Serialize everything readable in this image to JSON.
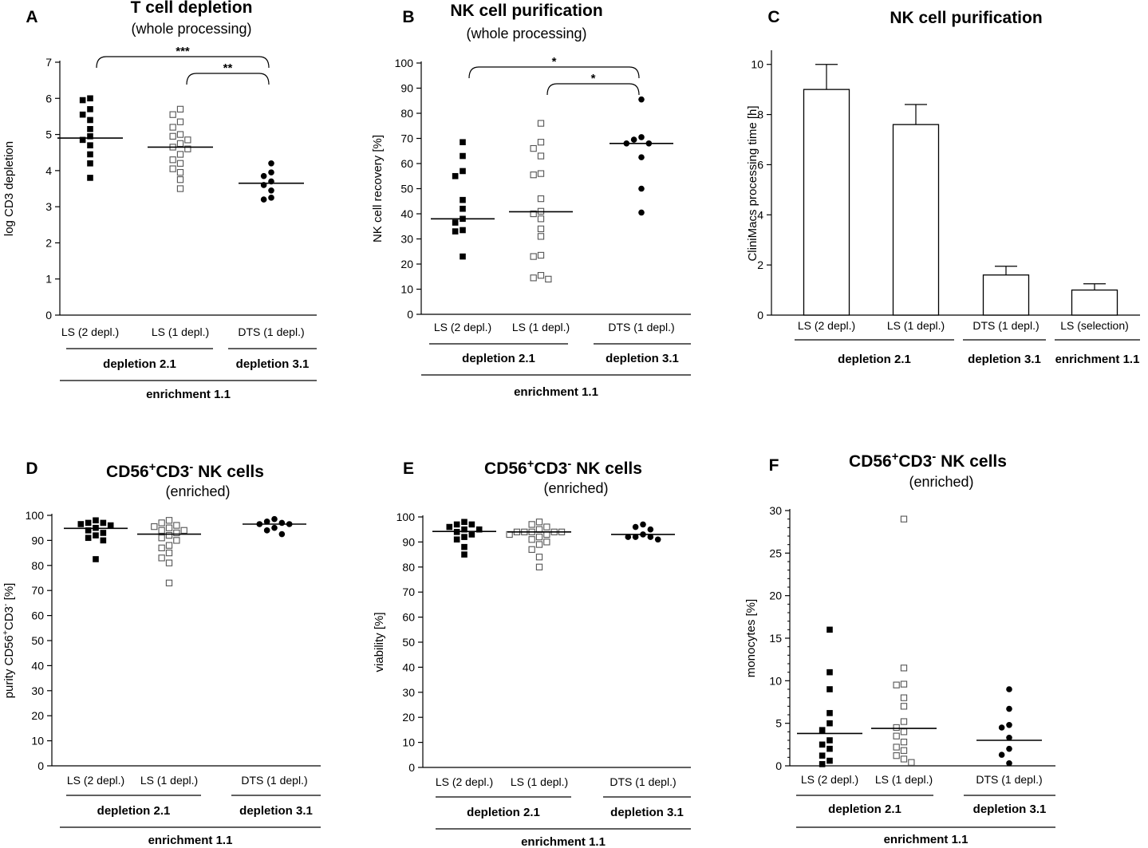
{
  "chart_data": [
    {
      "panel": "A",
      "type": "scatter",
      "title": "T cell depletion",
      "subtitle": "(whole processing)",
      "ylabel": "log CD3 depletion",
      "ylim": [
        0,
        7
      ],
      "yticks": [
        0,
        1,
        2,
        3,
        4,
        5,
        6,
        7
      ],
      "categories": [
        "LS (2 depl.)",
        "LS (1 depl.)",
        "DTS (1 depl.)"
      ],
      "groups": [
        {
          "label": "depletion 2.1",
          "span": [
            0,
            1
          ]
        },
        {
          "label": "depletion 3.1",
          "span": [
            2,
            2
          ]
        }
      ],
      "super_label": "enrichment 1.1",
      "series": [
        {
          "name": "LS (2 depl.)",
          "marker": "filled-square",
          "median": 4.9,
          "values": [
            6.0,
            5.95,
            5.7,
            5.55,
            5.4,
            5.15,
            4.95,
            4.85,
            4.7,
            4.45,
            4.2,
            3.8
          ]
        },
        {
          "name": "LS (1 depl.)",
          "marker": "open-square",
          "median": 4.65,
          "values": [
            5.7,
            5.55,
            5.35,
            5.2,
            5.0,
            4.95,
            4.85,
            4.75,
            4.65,
            4.6,
            4.45,
            4.3,
            4.2,
            4.05,
            3.95,
            3.75,
            3.5
          ]
        },
        {
          "name": "DTS (1 depl.)",
          "marker": "filled-circle",
          "median": 3.65,
          "values": [
            4.2,
            3.95,
            3.85,
            3.7,
            3.6,
            3.45,
            3.25,
            3.2
          ]
        }
      ],
      "significance": [
        {
          "from": 0,
          "to": 2,
          "label": "***"
        },
        {
          "from": 1,
          "to": 2,
          "label": "**"
        }
      ]
    },
    {
      "panel": "B",
      "type": "scatter",
      "title": "NK cell purification",
      "subtitle": "(whole processing)",
      "ylabel": "NK cell recovery  [%]",
      "ylim": [
        0,
        100
      ],
      "yticks": [
        0,
        10,
        20,
        30,
        40,
        50,
        60,
        70,
        80,
        90,
        100
      ],
      "categories": [
        "LS (2 depl.)",
        "LS (1 depl.)",
        "DTS (1 depl.)"
      ],
      "groups": [
        {
          "label": "depletion 2.1",
          "span": [
            0,
            1
          ]
        },
        {
          "label": "depletion 3.1",
          "span": [
            2,
            2
          ]
        }
      ],
      "super_label": "enrichment 1.1",
      "series": [
        {
          "name": "LS (2 depl.)",
          "marker": "filled-square",
          "median": 38,
          "values": [
            68.5,
            63,
            57,
            55,
            45.5,
            42,
            38,
            36.5,
            33.5,
            33,
            23
          ]
        },
        {
          "name": "LS (1 depl.)",
          "marker": "open-square",
          "median": 40.8,
          "values": [
            76,
            68.5,
            66,
            63,
            56,
            55.5,
            46,
            41,
            40,
            38,
            34,
            31,
            23.5,
            23,
            15.5,
            14.5,
            14
          ]
        },
        {
          "name": "DTS (1 depl.)",
          "marker": "filled-circle",
          "median": 68,
          "values": [
            85.5,
            70.5,
            69.5,
            68,
            68,
            62.5,
            50,
            40.5
          ]
        }
      ],
      "significance": [
        {
          "from": 0,
          "to": 2,
          "label": "*"
        },
        {
          "from": 1,
          "to": 2,
          "label": "*"
        }
      ]
    },
    {
      "panel": "C",
      "type": "bar",
      "title": "NK cell purification",
      "subtitle": "",
      "ylabel": "CliniMacs processing time [h]",
      "ylim": [
        0,
        10.5
      ],
      "yticks": [
        0,
        2,
        4,
        6,
        8,
        10
      ],
      "categories": [
        "LS (2 depl.)",
        "LS (1 depl.)",
        "DTS (1 depl.)",
        "LS (selection)"
      ],
      "groups": [
        {
          "label": "depletion 2.1",
          "span": [
            0,
            1
          ]
        },
        {
          "label": "depletion 3.1",
          "span": [
            2,
            2
          ]
        },
        {
          "label": "enrichment 1.1",
          "span": [
            3,
            3
          ]
        }
      ],
      "super_label": "",
      "values": [
        9.0,
        7.6,
        1.6,
        1.0
      ],
      "errors": [
        1.0,
        0.8,
        0.35,
        0.25
      ]
    },
    {
      "panel": "D",
      "type": "scatter",
      "title": "CD56",
      "title_sup1": "+",
      "title_mid": "CD3",
      "title_sup2": "-",
      "title_end": " NK cells",
      "subtitle": "(enriched)",
      "ylabel": "purity CD56",
      "ylabel_sup1": "+",
      "ylabel_mid": "CD3",
      "ylabel_sup2": "-",
      "ylabel_end": "   [%]",
      "ylim": [
        0,
        100
      ],
      "yticks": [
        0,
        10,
        20,
        30,
        40,
        50,
        60,
        70,
        80,
        90,
        100
      ],
      "categories": [
        "LS (2 depl.)",
        "LS (1 depl.)",
        "DTS (1 depl.)"
      ],
      "groups": [
        {
          "label": "depletion 2.1",
          "span": [
            0,
            1
          ]
        },
        {
          "label": "depletion 3.1",
          "span": [
            2,
            2
          ]
        }
      ],
      "super_label": "enrichment 1.1",
      "series": [
        {
          "name": "LS (2 depl.)",
          "marker": "filled-square",
          "median": 94.8,
          "values": [
            98,
            97,
            97,
            96.5,
            96,
            95,
            94,
            93,
            92,
            91,
            90,
            82.5
          ]
        },
        {
          "name": "LS (1 depl.)",
          "marker": "open-square",
          "median": 92.5,
          "values": [
            98,
            97,
            96,
            95.5,
            95,
            94,
            94,
            93,
            92,
            91,
            90,
            88,
            87,
            85,
            83,
            81,
            73
          ]
        },
        {
          "name": "DTS (1 depl.)",
          "marker": "filled-circle",
          "median": 96.5,
          "values": [
            98.5,
            97.5,
            97,
            96.5,
            96.5,
            95,
            94,
            92.5
          ]
        }
      ]
    },
    {
      "panel": "E",
      "type": "scatter",
      "title": "CD56",
      "title_sup1": "+",
      "title_mid": "CD3",
      "title_sup2": "-",
      "title_end": " NK cells",
      "subtitle": "(enriched)",
      "ylabel": "viability  [%]",
      "ylim": [
        0,
        100
      ],
      "yticks": [
        0,
        10,
        20,
        30,
        40,
        50,
        60,
        70,
        80,
        90,
        100
      ],
      "categories": [
        "LS (2 depl.)",
        "LS (1 depl.)",
        "DTS (1 depl.)"
      ],
      "groups": [
        {
          "label": "depletion 2.1",
          "span": [
            0,
            1
          ]
        },
        {
          "label": "depletion 3.1",
          "span": [
            2,
            2
          ]
        }
      ],
      "super_label": "enrichment 1.1",
      "series": [
        {
          "name": "LS (2 depl.)",
          "marker": "filled-square",
          "median": 94.2,
          "values": [
            98,
            97,
            97,
            96,
            95,
            95,
            94,
            93,
            92,
            91,
            88,
            85
          ]
        },
        {
          "name": "LS (1 depl.)",
          "marker": "open-square",
          "median": 94,
          "values": [
            98,
            97,
            96,
            95,
            94,
            94,
            94,
            94,
            94,
            93,
            93,
            92,
            91,
            90,
            89,
            87,
            84,
            80
          ]
        },
        {
          "name": "DTS (1 depl.)",
          "marker": "filled-circle",
          "median": 93,
          "values": [
            97,
            96,
            95,
            93,
            92,
            92,
            92,
            91
          ]
        }
      ]
    },
    {
      "panel": "F",
      "type": "scatter",
      "title": "CD56",
      "title_sup1": "+",
      "title_mid": "CD3",
      "title_sup2": "-",
      "title_end": " NK cells",
      "subtitle": "(enriched)",
      "ylabel": "monocytes  [%]",
      "ylim": [
        0,
        30
      ],
      "yticks": [
        0,
        5,
        10,
        15,
        20,
        25,
        30
      ],
      "categories": [
        "LS (2 depl.)",
        "LS (1 depl.)",
        "DTS (1 depl.)"
      ],
      "groups": [
        {
          "label": "depletion 2.1",
          "span": [
            0,
            1
          ]
        },
        {
          "label": "depletion 3.1",
          "span": [
            2,
            2
          ]
        }
      ],
      "super_label": "enrichment 1.1",
      "series": [
        {
          "name": "LS (2 depl.)",
          "marker": "filled-square",
          "median": 3.8,
          "values": [
            16,
            11,
            9,
            6.2,
            5,
            4.2,
            3,
            2.5,
            2,
            1.2,
            0.6,
            0.2
          ]
        },
        {
          "name": "LS (1 depl.)",
          "marker": "open-square",
          "median": 4.4,
          "values": [
            29,
            11.5,
            9.6,
            9.5,
            8,
            7,
            5.2,
            4.5,
            4,
            3.5,
            2.8,
            2.2,
            1.8,
            1.2,
            0.8,
            0.4
          ]
        },
        {
          "name": "DTS (1 depl.)",
          "marker": "filled-circle",
          "median": 3.0,
          "values": [
            9,
            6.7,
            4.8,
            4.5,
            3.3,
            2,
            1.3,
            0.3
          ]
        }
      ]
    }
  ]
}
